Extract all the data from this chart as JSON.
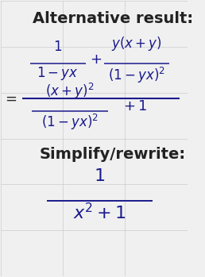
{
  "background_color": "#f0f0f0",
  "title": "Alternative result:",
  "title_fontsize": 14,
  "simplify_label": "Simplify/rewrite:",
  "simplify_fontsize": 14,
  "math_color": "#1a1a8c",
  "text_color": "#222222",
  "grid_color": "#cccccc",
  "fig_width": 2.58,
  "fig_height": 3.49,
  "dpi": 100
}
